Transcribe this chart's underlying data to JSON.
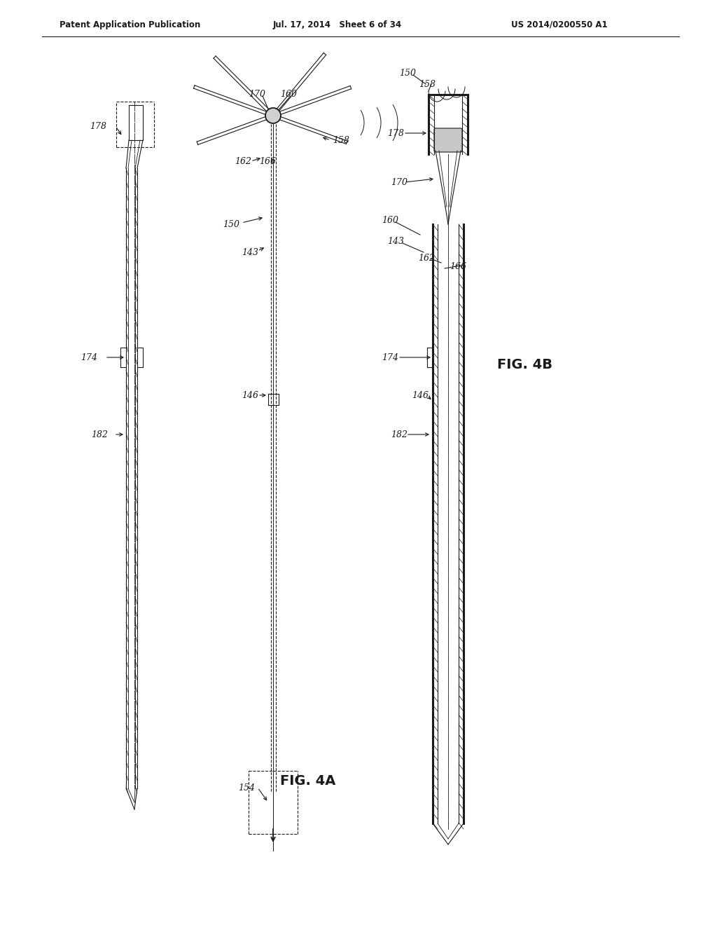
{
  "bg_color": "#ffffff",
  "line_color": "#1a1a1a",
  "header_text": "Patent Application Publication",
  "header_date": "Jul. 17, 2014   Sheet 6 of 34",
  "header_patent": "US 2014/0200550 A1",
  "fig4a_label": "FIG. 4A",
  "fig4b_label": "FIG. 4B"
}
